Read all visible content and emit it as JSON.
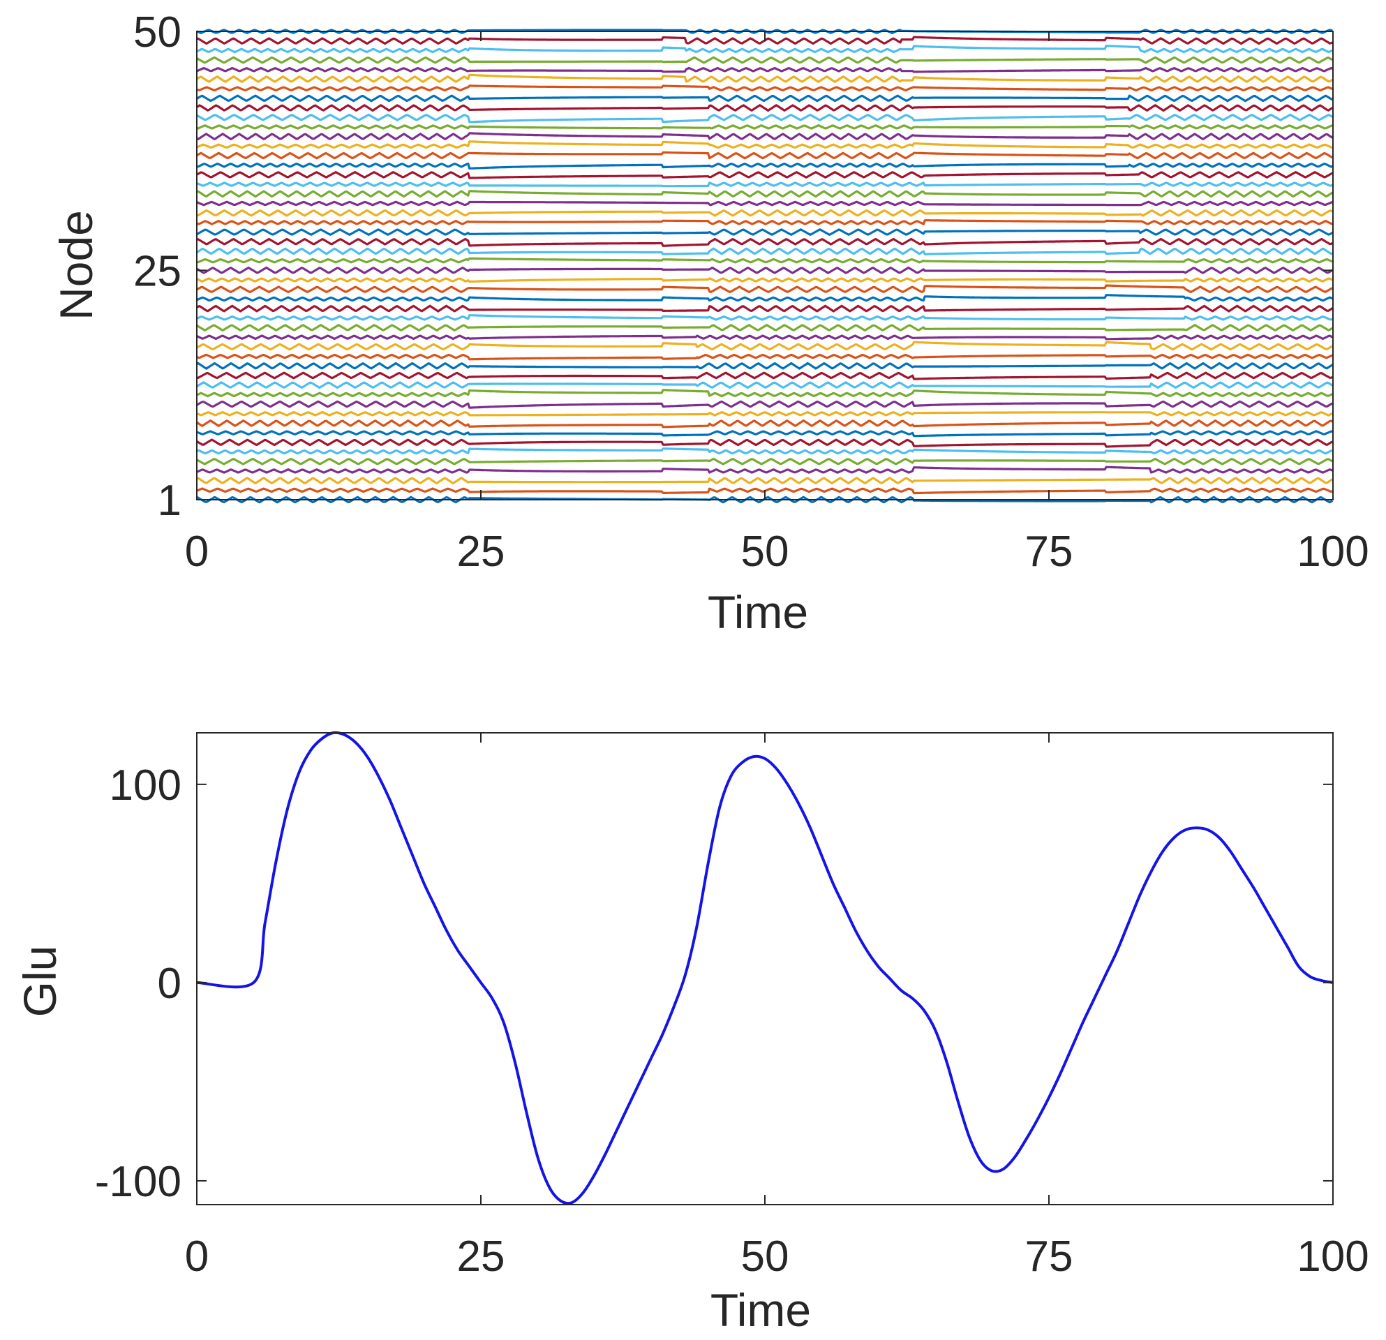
{
  "chart_data": [
    {
      "type": "line",
      "title": "",
      "xlabel": "Time",
      "ylabel": "Node",
      "xlim": [
        0,
        100
      ],
      "ylim": [
        1,
        50
      ],
      "xticks": [
        0,
        25,
        50,
        75,
        100
      ],
      "xtick_labels": [
        "0",
        "25",
        "50",
        "75",
        "100"
      ],
      "yticks": [
        1,
        25,
        50
      ],
      "ytick_labels": [
        "1",
        "25",
        "50"
      ],
      "grid": false,
      "node_count": 50,
      "series_colors": [
        "#0072BD",
        "#D95319",
        "#EDB120",
        "#7E2F8E",
        "#77AC30",
        "#4DBEEE",
        "#A2142F"
      ],
      "description_of_series": "50 node traces offset by node index; nodes alternate between oscillating (bursting) and quiescent states over time",
      "oscillation_windows": [
        {
          "nodes": [
            1,
            12
          ],
          "intervals": [
            [
              0,
              24
            ],
            [
              45,
              63
            ],
            [
              84,
              100
            ]
          ]
        },
        {
          "nodes": [
            13,
            18
          ],
          "intervals": [
            [
              0,
              24
            ],
            [
              44,
              63
            ],
            [
              84,
              100
            ]
          ]
        },
        {
          "nodes": [
            19,
            26
          ],
          "intervals": [
            [
              0,
              24
            ],
            [
              45,
              64
            ],
            [
              87,
              100
            ]
          ]
        },
        {
          "nodes": [
            27,
            35
          ],
          "intervals": [
            [
              0,
              24
            ],
            [
              45,
              64
            ],
            [
              83,
              100
            ]
          ]
        },
        {
          "nodes": [
            36,
            44
          ],
          "intervals": [
            [
              0,
              24
            ],
            [
              45,
              63
            ],
            [
              82,
              100
            ]
          ]
        },
        {
          "nodes": [
            45,
            50
          ],
          "intervals": [
            [
              0,
              24
            ],
            [
              43,
              62
            ],
            [
              83,
              100
            ]
          ]
        }
      ]
    },
    {
      "type": "line",
      "title": "",
      "xlabel": "Time",
      "ylabel": "Glu",
      "xlim": [
        0,
        100
      ],
      "ylim": [
        -112,
        126
      ],
      "xticks": [
        0,
        25,
        50,
        75,
        100
      ],
      "xtick_labels": [
        "0",
        "25",
        "50",
        "75",
        "100"
      ],
      "yticks": [
        -100,
        0,
        100
      ],
      "ytick_labels": [
        "-100",
        "0",
        "100"
      ],
      "grid": false,
      "series": [
        {
          "name": "Glu",
          "color": "#1414E6",
          "x": [
            0,
            5,
            6,
            7,
            8,
            9,
            10,
            11,
            12,
            13,
            14,
            15,
            16,
            17,
            18,
            19,
            20,
            21,
            22,
            23,
            24,
            25,
            26,
            27,
            28,
            29,
            30,
            31,
            32,
            33,
            34,
            35,
            36,
            37,
            38,
            39,
            40,
            41,
            42,
            43,
            44,
            45,
            46,
            47,
            48,
            49,
            50,
            51,
            52,
            53,
            54,
            55,
            56,
            57,
            58,
            59,
            60,
            61,
            62,
            63,
            64,
            65,
            66,
            67,
            68,
            69,
            70,
            71,
            72,
            73,
            74,
            75,
            76,
            77,
            78,
            79,
            80,
            81,
            82,
            83,
            84,
            85,
            86,
            87,
            88,
            89,
            90,
            91,
            92,
            93,
            94,
            95,
            96,
            97,
            98,
            99,
            100
          ],
          "y": [
            0,
            0,
            30,
            62,
            88,
            106,
            117,
            123,
            126,
            125,
            121,
            114,
            104,
            92,
            78,
            64,
            50,
            38,
            26,
            16,
            8,
            0,
            -8,
            -20,
            -40,
            -65,
            -88,
            -103,
            -110,
            -111,
            -106,
            -97,
            -86,
            -74,
            -62,
            -50,
            -38,
            -26,
            -12,
            4,
            28,
            60,
            88,
            104,
            111,
            114,
            113,
            108,
            100,
            90,
            78,
            64,
            50,
            38,
            26,
            16,
            8,
            2,
            -4,
            -8,
            -14,
            -24,
            -40,
            -60,
            -78,
            -90,
            -95,
            -94,
            -88,
            -79,
            -69,
            -58,
            -46,
            -33,
            -20,
            -8,
            4,
            16,
            30,
            44,
            56,
            66,
            73,
            77,
            78,
            77,
            73,
            66,
            57,
            48,
            38,
            28,
            18,
            8,
            3,
            1,
            0
          ]
        }
      ]
    }
  ]
}
